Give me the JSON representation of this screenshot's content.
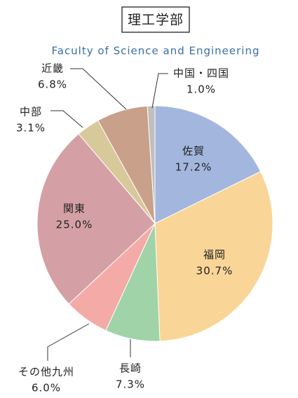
{
  "chart_data": {
    "type": "pie",
    "title": "理工学部",
    "subtitle": "Faculty of Science and Engineering",
    "categories": [
      "佐賀",
      "福岡",
      "長崎",
      "その他九州",
      "関東",
      "中部",
      "近畿",
      "中国・四国"
    ],
    "values": [
      17.2,
      30.7,
      7.3,
      6.0,
      25.0,
      3.1,
      6.8,
      1.0
    ],
    "value_labels": [
      "17.2%",
      "30.7%",
      "7.3%",
      "6.0%",
      "25.0%",
      "3.1%",
      "6.8%",
      "1.0%"
    ],
    "colors": [
      "#a3b6de",
      "#f9d597",
      "#a0d3a8",
      "#f4aaa7",
      "#d4a0a5",
      "#d8c99b",
      "#c9a08a",
      "#bfbfbf"
    ]
  }
}
